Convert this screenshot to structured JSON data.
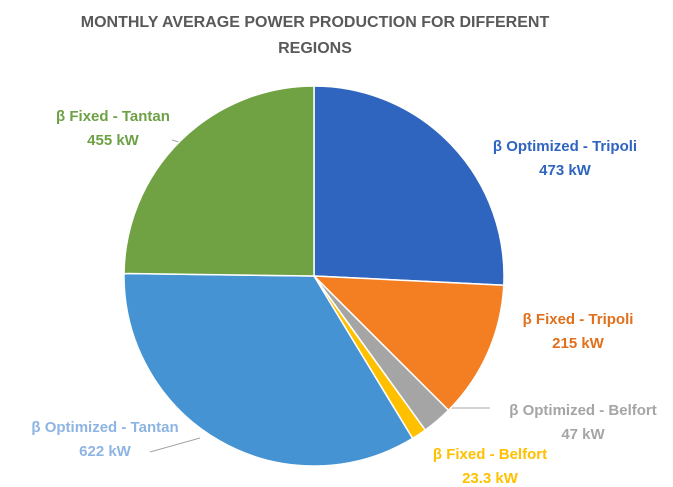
{
  "chart_data": {
    "type": "pie",
    "title": "MONTHLY AVERAGE POWER PRODUCTION FOR DIFFERENT REGIONS",
    "categories": [
      "β Optimized - Tripoli",
      "β Fixed - Tripoli",
      "β Optimized - Belfort",
      "β Fixed - Belfort",
      "β Optimized - Tantan",
      "β Fixed - Tantan"
    ],
    "values": [
      473,
      215,
      47,
      23.3,
      622,
      455
    ],
    "value_labels": [
      "473 kW",
      "215 kW",
      "47 kW",
      "23.3 kW",
      "622 kW",
      "455 kW"
    ],
    "colors": [
      "#2f65bf",
      "#f47e22",
      "#a5a5a5",
      "#ffc000",
      "#4593d2",
      "#70a244"
    ],
    "label_colors": [
      "#2f65bf",
      "#e0701c",
      "#a5a5a5",
      "#ffc000",
      "#8db4e2",
      "#6ea046"
    ]
  }
}
